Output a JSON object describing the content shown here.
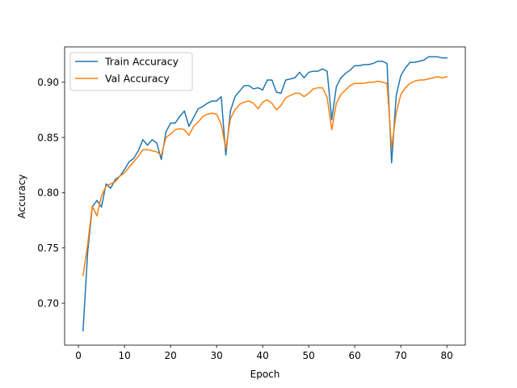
{
  "chart_data": {
    "type": "line",
    "title": "",
    "xlabel": "Epoch",
    "ylabel": "Accuracy",
    "xlim": [
      -3,
      84
    ],
    "ylim": [
      0.662,
      0.932
    ],
    "xticks": [
      0,
      10,
      20,
      30,
      40,
      50,
      60,
      70,
      80
    ],
    "xtick_labels": [
      "0",
      "10",
      "20",
      "30",
      "40",
      "50",
      "60",
      "70",
      "80"
    ],
    "yticks": [
      0.7,
      0.75,
      0.8,
      0.85,
      0.9
    ],
    "ytick_labels": [
      "0.70",
      "0.75",
      "0.80",
      "0.85",
      "0.90"
    ],
    "grid": false,
    "legend_position": "top-left",
    "x": [
      1,
      2,
      3,
      4,
      5,
      6,
      7,
      8,
      9,
      10,
      11,
      12,
      13,
      14,
      15,
      16,
      17,
      18,
      19,
      20,
      21,
      22,
      23,
      24,
      25,
      26,
      27,
      28,
      29,
      30,
      31,
      32,
      33,
      34,
      35,
      36,
      37,
      38,
      39,
      40,
      41,
      42,
      43,
      44,
      45,
      46,
      47,
      48,
      49,
      50,
      51,
      52,
      53,
      54,
      55,
      56,
      57,
      58,
      59,
      60,
      61,
      62,
      63,
      64,
      65,
      66,
      67,
      68,
      69,
      70,
      71,
      72,
      73,
      74,
      75,
      76,
      77,
      78,
      79,
      80
    ],
    "series": [
      {
        "name": "Train Accuracy",
        "color": "#1f77b4",
        "values": [
          0.675,
          0.746,
          0.787,
          0.793,
          0.787,
          0.808,
          0.804,
          0.812,
          0.815,
          0.821,
          0.828,
          0.831,
          0.838,
          0.848,
          0.843,
          0.848,
          0.845,
          0.83,
          0.855,
          0.863,
          0.863,
          0.869,
          0.874,
          0.86,
          0.868,
          0.876,
          0.878,
          0.881,
          0.883,
          0.883,
          0.887,
          0.834,
          0.874,
          0.887,
          0.892,
          0.897,
          0.897,
          0.894,
          0.895,
          0.893,
          0.902,
          0.902,
          0.891,
          0.89,
          0.902,
          0.903,
          0.904,
          0.909,
          0.904,
          0.909,
          0.91,
          0.91,
          0.912,
          0.91,
          0.866,
          0.896,
          0.904,
          0.908,
          0.911,
          0.915,
          0.915,
          0.916,
          0.916,
          0.917,
          0.919,
          0.919,
          0.917,
          0.827,
          0.888,
          0.906,
          0.913,
          0.918,
          0.918,
          0.919,
          0.92,
          0.923,
          0.923,
          0.923,
          0.922,
          0.922
        ]
      },
      {
        "name": "Val Accuracy",
        "color": "#ff7f0e",
        "values": [
          0.725,
          0.753,
          0.788,
          0.779,
          0.797,
          0.806,
          0.808,
          0.81,
          0.815,
          0.818,
          0.823,
          0.828,
          0.833,
          0.839,
          0.839,
          0.838,
          0.837,
          0.834,
          0.85,
          0.853,
          0.857,
          0.858,
          0.857,
          0.852,
          0.86,
          0.864,
          0.869,
          0.871,
          0.872,
          0.871,
          0.862,
          0.84,
          0.867,
          0.875,
          0.88,
          0.882,
          0.883,
          0.881,
          0.876,
          0.882,
          0.884,
          0.881,
          0.875,
          0.879,
          0.886,
          0.888,
          0.89,
          0.89,
          0.887,
          0.89,
          0.894,
          0.895,
          0.895,
          0.886,
          0.857,
          0.881,
          0.889,
          0.893,
          0.897,
          0.899,
          0.899,
          0.899,
          0.9,
          0.9,
          0.901,
          0.9,
          0.899,
          0.841,
          0.872,
          0.889,
          0.895,
          0.899,
          0.901,
          0.902,
          0.902,
          0.903,
          0.904,
          0.905,
          0.904,
          0.905
        ]
      }
    ]
  }
}
